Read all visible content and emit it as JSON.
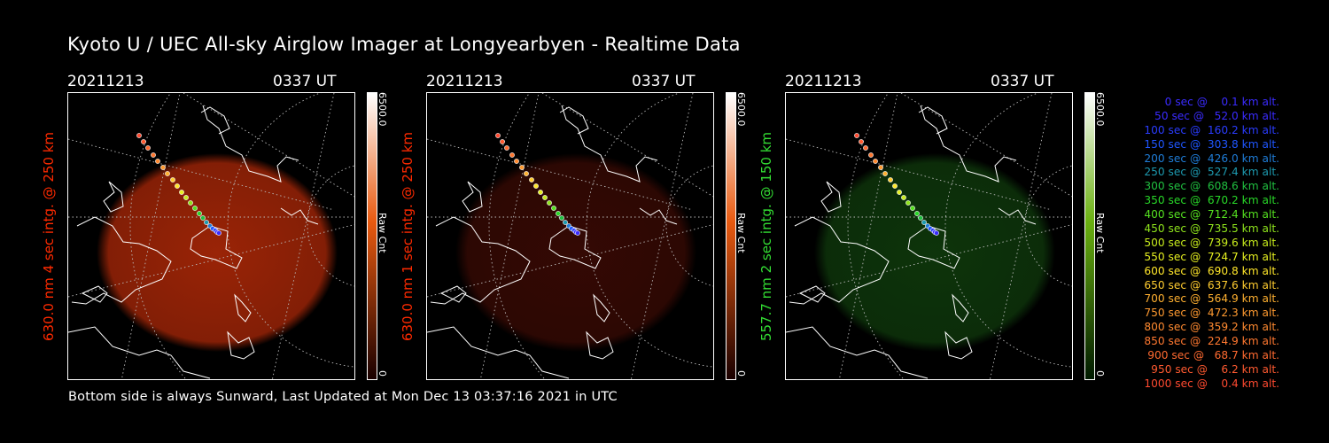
{
  "title": "Kyoto U / UEC All-sky Airglow Imager at Longyearbyen - Realtime Data",
  "footer": "Bottom side is always Sunward, Last Updated at Mon Dec 13 03:37:16 2021 in UTC",
  "panels": [
    {
      "date": "20211213",
      "time": "0337 UT",
      "ylabel": "630.0 nm 4 sec intg. @ 250 km",
      "label_color": "#ff2a00",
      "glow_color": "#b52a08",
      "glow_opacity": 0.85,
      "cbar_max": "6500.0",
      "cbar_min": "0",
      "cbar_unit": "Raw Cnt",
      "cbar_top": "#ffffff",
      "cbar_mid": "#e85a10",
      "cbar_bottom": "#1a0000"
    },
    {
      "date": "20211213",
      "time": "0337 UT",
      "ylabel": "630.0 nm 1 sec intg. @ 250 km",
      "label_color": "#ff2a00",
      "glow_color": "#3a0a04",
      "glow_opacity": 0.9,
      "cbar_max": "6500.0",
      "cbar_min": "0",
      "cbar_unit": "Raw Cnt",
      "cbar_top": "#ffffff",
      "cbar_mid": "#e85a10",
      "cbar_bottom": "#1a0000"
    },
    {
      "date": "20211213",
      "time": "0337 UT",
      "ylabel": "557.7 nm 2 sec intg. @ 150 km",
      "label_color": "#33dd33",
      "glow_color": "#0f3a0c",
      "glow_opacity": 0.9,
      "cbar_max": "6500.0",
      "cbar_min": "0",
      "cbar_unit": "Raw Cnt",
      "cbar_top": "#ffffff",
      "cbar_mid": "#6ab010",
      "cbar_bottom": "#001a00"
    }
  ],
  "legend": [
    {
      "text": "   0 sec @    0.1 km alt.",
      "color": "#3a2bff"
    },
    {
      "text": "  50 sec @   52.0 km alt.",
      "color": "#3a2bff"
    },
    {
      "text": " 100 sec @  160.2 km alt.",
      "color": "#2a3cff"
    },
    {
      "text": " 150 sec @  303.8 km alt.",
      "color": "#1f56ff"
    },
    {
      "text": " 200 sec @  426.0 km alt.",
      "color": "#1f7dd8"
    },
    {
      "text": " 250 sec @  527.4 km alt.",
      "color": "#1d9ab0"
    },
    {
      "text": " 300 sec @  608.6 km alt.",
      "color": "#20c040"
    },
    {
      "text": " 350 sec @  670.2 km alt.",
      "color": "#28d828"
    },
    {
      "text": " 400 sec @  712.4 km alt.",
      "color": "#55e020"
    },
    {
      "text": " 450 sec @  735.5 km alt.",
      "color": "#8fe41c"
    },
    {
      "text": " 500 sec @  739.6 km alt.",
      "color": "#c8ec1c"
    },
    {
      "text": " 550 sec @  724.7 km alt.",
      "color": "#e6f020"
    },
    {
      "text": " 600 sec @  690.8 km alt.",
      "color": "#ffe62a"
    },
    {
      "text": " 650 sec @  637.6 km alt.",
      "color": "#ffcc30"
    },
    {
      "text": " 700 sec @  564.9 km alt.",
      "color": "#ffb030"
    },
    {
      "text": " 750 sec @  472.3 km alt.",
      "color": "#ff9a30"
    },
    {
      "text": " 800 sec @  359.2 km alt.",
      "color": "#ff8a30"
    },
    {
      "text": " 850 sec @  224.9 km alt.",
      "color": "#ff7830"
    },
    {
      "text": " 900 sec @   68.7 km alt.",
      "color": "#ff6a30"
    },
    {
      "text": " 950 sec @    6.2 km alt.",
      "color": "#ff5a30"
    },
    {
      "text": "1000 sec @    0.4 km alt.",
      "color": "#ff4a30"
    }
  ]
}
